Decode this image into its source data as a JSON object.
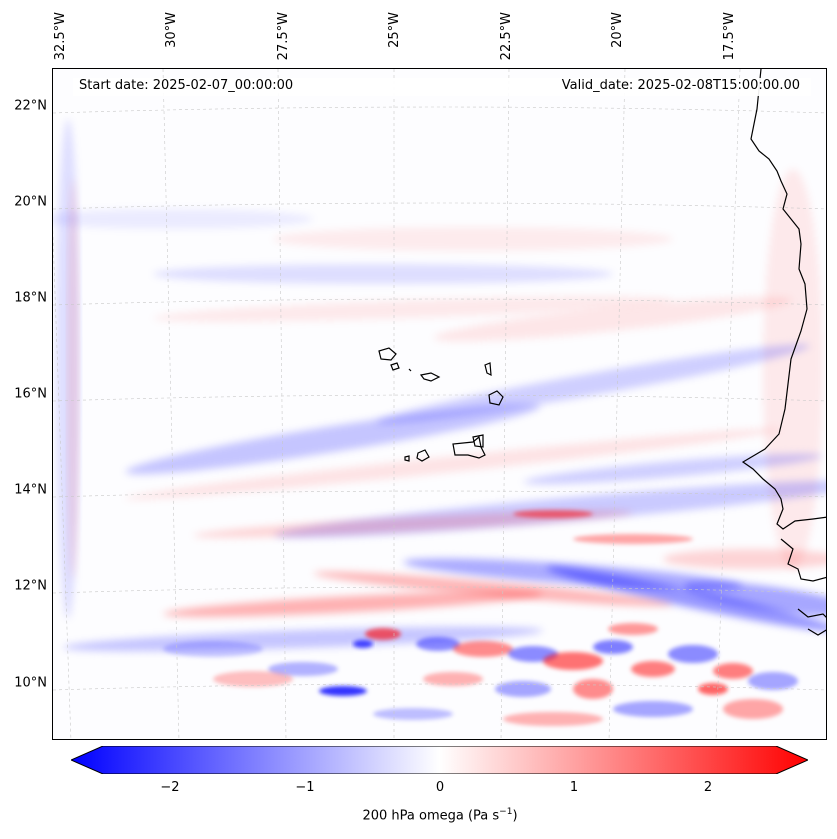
{
  "map": {
    "start_date_text": "Start date: 2025-02-07_00:00:00",
    "valid_date_text": "Valid_date: 2025-02-08T15:00:00.00",
    "lat_labels": [
      "22°N",
      "20°N",
      "18°N",
      "16°N",
      "14°N",
      "12°N",
      "10°N"
    ],
    "lon_labels": [
      "32.5°W",
      "30°W",
      "27.5°W",
      "25°W",
      "22.5°W",
      "20°W",
      "17.5°W"
    ],
    "field_variable": "200 hPa omega",
    "positive_color": "#ff0000",
    "negative_color": "#0000ff",
    "coastline_color": "#000000",
    "gridline_color": "#c8c8c8"
  },
  "colorbar": {
    "label_main": "200 hPa omega (Pa s",
    "label_exp": "−1",
    "label_close": ")",
    "ticks": [
      "−2",
      "−1",
      "0",
      "1",
      "2"
    ],
    "min": -2.5,
    "max": 2.5,
    "cmap": "bwr"
  }
}
